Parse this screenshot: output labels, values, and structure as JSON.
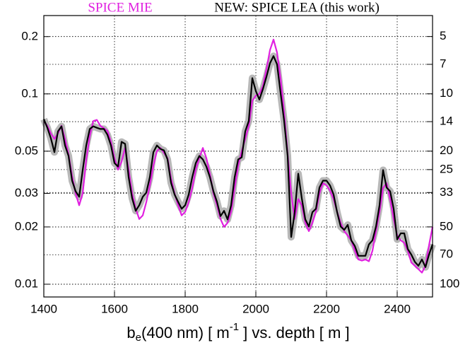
{
  "chart_data": {
    "type": "line",
    "log_y": true,
    "grid": true,
    "xlabel": [
      "b",
      "e",
      "(400 nm) [ m",
      "-1",
      " ] vs. depth [ m ]"
    ],
    "x": [
      1400,
      1410,
      1420,
      1430,
      1440,
      1450,
      1460,
      1470,
      1480,
      1490,
      1500,
      1510,
      1520,
      1530,
      1540,
      1550,
      1560,
      1570,
      1580,
      1590,
      1600,
      1610,
      1620,
      1630,
      1640,
      1650,
      1660,
      1670,
      1680,
      1690,
      1700,
      1710,
      1720,
      1730,
      1740,
      1750,
      1760,
      1770,
      1780,
      1790,
      1800,
      1810,
      1820,
      1830,
      1840,
      1850,
      1860,
      1870,
      1880,
      1890,
      1900,
      1910,
      1920,
      1930,
      1940,
      1950,
      1960,
      1970,
      1980,
      1990,
      2000,
      2010,
      2020,
      2030,
      2040,
      2050,
      2060,
      2070,
      2080,
      2090,
      2100,
      2110,
      2120,
      2130,
      2140,
      2150,
      2160,
      2170,
      2180,
      2190,
      2200,
      2210,
      2220,
      2230,
      2240,
      2250,
      2260,
      2270,
      2280,
      2290,
      2300,
      2310,
      2320,
      2330,
      2340,
      2350,
      2360,
      2370,
      2380,
      2390,
      2400,
      2410,
      2420,
      2430,
      2440,
      2450,
      2460,
      2470,
      2480,
      2490,
      2500
    ],
    "series": [
      {
        "name": "SPICE MIE",
        "color": "#e020e0",
        "values": [
          0.072,
          0.068,
          0.062,
          0.058,
          0.062,
          0.068,
          0.058,
          0.048,
          0.037,
          0.03,
          0.026,
          0.03,
          0.045,
          0.06,
          0.072,
          0.073,
          0.068,
          0.066,
          0.064,
          0.056,
          0.046,
          0.04,
          0.044,
          0.052,
          0.04,
          0.03,
          0.025,
          0.022,
          0.023,
          0.027,
          0.033,
          0.042,
          0.05,
          0.052,
          0.049,
          0.046,
          0.036,
          0.03,
          0.026,
          0.023,
          0.024,
          0.027,
          0.032,
          0.04,
          0.046,
          0.052,
          0.046,
          0.038,
          0.03,
          0.026,
          0.022,
          0.02,
          0.021,
          0.024,
          0.032,
          0.042,
          0.05,
          0.058,
          0.068,
          0.092,
          0.098,
          0.1,
          0.11,
          0.135,
          0.17,
          0.193,
          0.165,
          0.12,
          0.08,
          0.048,
          0.03,
          0.022,
          0.028,
          0.026,
          0.021,
          0.019,
          0.021,
          0.024,
          0.03,
          0.034,
          0.033,
          0.031,
          0.028,
          0.024,
          0.021,
          0.019,
          0.018,
          0.017,
          0.015,
          0.0135,
          0.0133,
          0.0135,
          0.0132,
          0.015,
          0.019,
          0.024,
          0.032,
          0.034,
          0.028,
          0.022,
          0.018,
          0.017,
          0.0165,
          0.015,
          0.013,
          0.0125,
          0.012,
          0.0115,
          0.0125,
          0.016,
          0.02
        ]
      },
      {
        "name": "NEW: SPICE LEA (this work)",
        "color": "#000000",
        "values": [
          0.0736,
          0.0664,
          0.0584,
          0.0494,
          0.0636,
          0.0676,
          0.0536,
          0.0472,
          0.035,
          0.0308,
          0.0288,
          0.0398,
          0.0536,
          0.0654,
          0.0676,
          0.0664,
          0.0654,
          0.0654,
          0.061,
          0.0536,
          0.0433,
          0.0415,
          0.056,
          0.0546,
          0.0365,
          0.0283,
          0.0243,
          0.026,
          0.0288,
          0.0303,
          0.0365,
          0.0494,
          0.0536,
          0.0514,
          0.0505,
          0.0453,
          0.0341,
          0.0296,
          0.0271,
          0.0249,
          0.026,
          0.0296,
          0.0365,
          0.0433,
          0.0472,
          0.0453,
          0.0415,
          0.0365,
          0.0308,
          0.0271,
          0.0228,
          0.0243,
          0.0219,
          0.026,
          0.0365,
          0.0453,
          0.0464,
          0.0636,
          0.0721,
          0.121,
          0.1035,
          0.0934,
          0.106,
          0.123,
          0.145,
          0.158,
          0.143,
          0.101,
          0.0721,
          0.0472,
          0.0177,
          0.0239,
          0.0381,
          0.0283,
          0.0219,
          0.0201,
          0.0239,
          0.0249,
          0.0322,
          0.035,
          0.035,
          0.033,
          0.0296,
          0.0239,
          0.0201,
          0.0193,
          0.0205,
          0.017,
          0.0159,
          0.0141,
          0.0141,
          0.0141,
          0.0162,
          0.017,
          0.0201,
          0.026,
          0.0398,
          0.0322,
          0.0308,
          0.0249,
          0.0172,
          0.0185,
          0.0185,
          0.0153,
          0.0143,
          0.0131,
          0.0125,
          0.0135,
          0.0123,
          0.0143,
          0.0162
        ]
      }
    ],
    "xlim": [
      1400,
      2500
    ],
    "xticks": [
      1400,
      1600,
      1800,
      2000,
      2200,
      2400
    ],
    "ylim": [
      0.00857,
      0.258
    ],
    "yticks": [
      0.01,
      0.02,
      0.03,
      0.05,
      0.1,
      0.2
    ],
    "y2lim": [
      116.7,
      3.88
    ],
    "y2ticks": [
      5,
      7,
      10,
      14,
      20,
      25,
      33,
      50,
      70,
      100
    ]
  }
}
